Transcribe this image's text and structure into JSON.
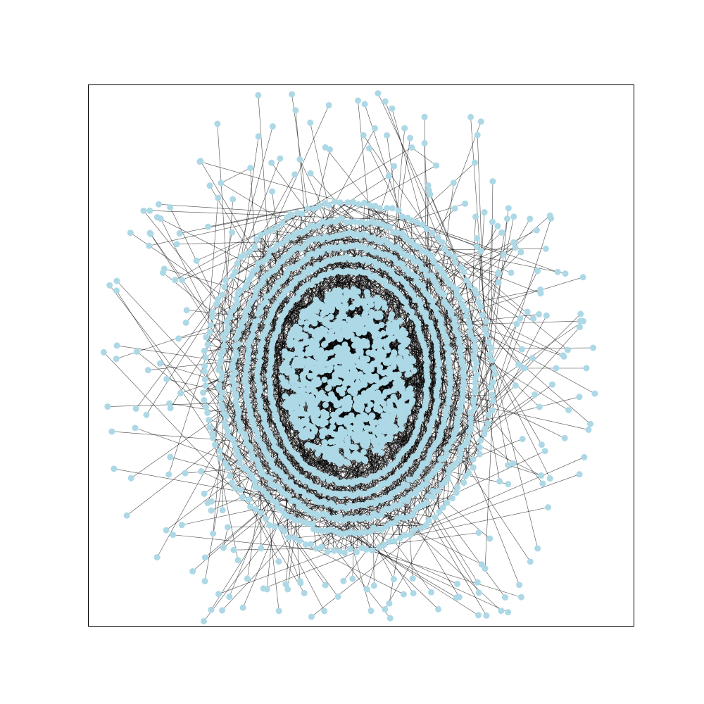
{
  "figure": {
    "type": "directed-graph",
    "layout": "spring",
    "background": "#ffffff",
    "frame_color": "#000000",
    "axes_visible": false
  },
  "style": {
    "node_color": "#add8e6",
    "edge_color": "#000000",
    "edge_opacity": 0.7,
    "arrows": true
  },
  "graph": {
    "dense_core_nodes": 1100,
    "ring_count": 6,
    "node_count_estimate": 2200
  }
}
